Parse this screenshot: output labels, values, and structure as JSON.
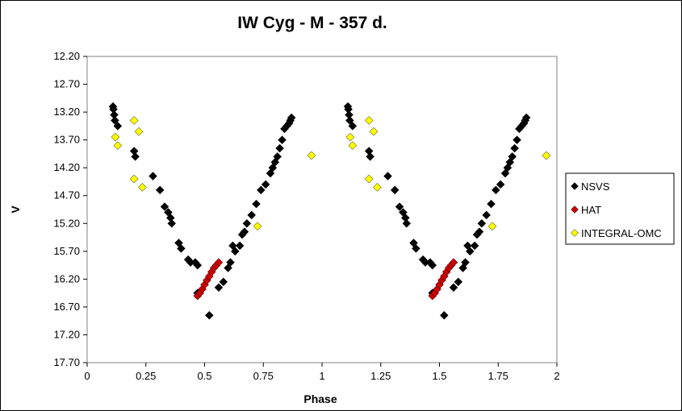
{
  "chart_data": {
    "type": "scatter",
    "title": "IW Cyg - M - 357 d.",
    "xlabel": "Phase",
    "ylabel": "V",
    "xlim": [
      0,
      2
    ],
    "ylim": [
      17.7,
      12.2
    ],
    "y_axis_inverted": true,
    "x_ticks": [
      "0",
      "0.25",
      "0.5",
      "0.75",
      "1",
      "1.25",
      "1.5",
      "1.75",
      "2"
    ],
    "y_ticks": [
      "12.20",
      "12.70",
      "13.20",
      "13.70",
      "14.20",
      "14.70",
      "15.20",
      "15.70",
      "16.20",
      "16.70",
      "17.20",
      "17.70"
    ],
    "grid": false,
    "legend_position": "right",
    "series": [
      {
        "name": "NSVS",
        "color": "#000000",
        "marker": "diamond",
        "points": [
          [
            0.11,
            13.1
          ],
          [
            0.112,
            13.15
          ],
          [
            0.115,
            13.25
          ],
          [
            0.118,
            13.35
          ],
          [
            0.13,
            13.45
          ],
          [
            0.2,
            13.9
          ],
          [
            0.205,
            14.0
          ],
          [
            0.28,
            14.35
          ],
          [
            0.31,
            14.6
          ],
          [
            0.33,
            14.9
          ],
          [
            0.345,
            15.0
          ],
          [
            0.355,
            15.1
          ],
          [
            0.36,
            15.2
          ],
          [
            0.39,
            15.55
          ],
          [
            0.4,
            15.65
          ],
          [
            0.43,
            15.85
          ],
          [
            0.44,
            15.9
          ],
          [
            0.46,
            15.9
          ],
          [
            0.47,
            15.95
          ],
          [
            0.47,
            16.45
          ],
          [
            0.52,
            16.85
          ],
          [
            0.56,
            16.35
          ],
          [
            0.58,
            16.25
          ],
          [
            0.6,
            16.0
          ],
          [
            0.61,
            15.9
          ],
          [
            0.62,
            15.6
          ],
          [
            0.63,
            15.7
          ],
          [
            0.65,
            15.6
          ],
          [
            0.66,
            15.4
          ],
          [
            0.67,
            15.35
          ],
          [
            0.68,
            15.2
          ],
          [
            0.7,
            15.05
          ],
          [
            0.72,
            14.85
          ],
          [
            0.74,
            14.6
          ],
          [
            0.76,
            14.5
          ],
          [
            0.78,
            14.3
          ],
          [
            0.79,
            14.2
          ],
          [
            0.8,
            14.1
          ],
          [
            0.81,
            14.0
          ],
          [
            0.82,
            13.85
          ],
          [
            0.83,
            13.7
          ],
          [
            0.84,
            13.5
          ],
          [
            0.85,
            13.45
          ],
          [
            0.86,
            13.4
          ],
          [
            0.865,
            13.35
          ],
          [
            0.87,
            13.3
          ],
          [
            1.11,
            13.1
          ],
          [
            1.112,
            13.15
          ],
          [
            1.115,
            13.25
          ],
          [
            1.118,
            13.35
          ],
          [
            1.13,
            13.45
          ],
          [
            1.2,
            13.9
          ],
          [
            1.205,
            14.0
          ],
          [
            1.28,
            14.35
          ],
          [
            1.31,
            14.6
          ],
          [
            1.33,
            14.9
          ],
          [
            1.345,
            15.0
          ],
          [
            1.355,
            15.1
          ],
          [
            1.36,
            15.2
          ],
          [
            1.39,
            15.55
          ],
          [
            1.4,
            15.65
          ],
          [
            1.43,
            15.85
          ],
          [
            1.44,
            15.9
          ],
          [
            1.46,
            15.9
          ],
          [
            1.47,
            15.95
          ],
          [
            1.47,
            16.45
          ],
          [
            1.52,
            16.85
          ],
          [
            1.56,
            16.35
          ],
          [
            1.58,
            16.25
          ],
          [
            1.6,
            16.0
          ],
          [
            1.61,
            15.9
          ],
          [
            1.62,
            15.6
          ],
          [
            1.63,
            15.7
          ],
          [
            1.65,
            15.6
          ],
          [
            1.66,
            15.4
          ],
          [
            1.67,
            15.35
          ],
          [
            1.68,
            15.2
          ],
          [
            1.7,
            15.05
          ],
          [
            1.72,
            14.85
          ],
          [
            1.74,
            14.6
          ],
          [
            1.76,
            14.5
          ],
          [
            1.78,
            14.3
          ],
          [
            1.79,
            14.2
          ],
          [
            1.8,
            14.1
          ],
          [
            1.81,
            14.0
          ],
          [
            1.82,
            13.85
          ],
          [
            1.83,
            13.7
          ],
          [
            1.84,
            13.5
          ],
          [
            1.85,
            13.45
          ],
          [
            1.86,
            13.4
          ],
          [
            1.865,
            13.35
          ],
          [
            1.87,
            13.3
          ]
        ]
      },
      {
        "name": "HAT",
        "color": "#cc0000",
        "marker": "diamond",
        "points": [
          [
            0.47,
            16.5
          ],
          [
            0.48,
            16.45
          ],
          [
            0.49,
            16.38
          ],
          [
            0.5,
            16.3
          ],
          [
            0.51,
            16.22
          ],
          [
            0.52,
            16.15
          ],
          [
            0.53,
            16.07
          ],
          [
            0.54,
            16.0
          ],
          [
            0.55,
            15.95
          ],
          [
            0.56,
            15.9
          ],
          [
            1.47,
            16.5
          ],
          [
            1.48,
            16.45
          ],
          [
            1.49,
            16.38
          ],
          [
            1.5,
            16.3
          ],
          [
            1.51,
            16.22
          ],
          [
            1.52,
            16.15
          ],
          [
            1.53,
            16.07
          ],
          [
            1.54,
            16.0
          ],
          [
            1.55,
            15.95
          ],
          [
            1.56,
            15.9
          ]
        ]
      },
      {
        "name": "INTEGRAL-OMC",
        "color": "#ffff00",
        "marker": "diamond",
        "points": [
          [
            0.12,
            13.65
          ],
          [
            0.13,
            13.8
          ],
          [
            0.2,
            13.35
          ],
          [
            0.22,
            13.55
          ],
          [
            0.2,
            14.4
          ],
          [
            0.235,
            14.55
          ],
          [
            0.725,
            15.25
          ],
          [
            0.955,
            13.98
          ],
          [
            1.12,
            13.65
          ],
          [
            1.13,
            13.8
          ],
          [
            1.2,
            13.35
          ],
          [
            1.22,
            13.55
          ],
          [
            1.2,
            14.4
          ],
          [
            1.235,
            14.55
          ],
          [
            1.725,
            15.25
          ],
          [
            1.955,
            13.98
          ]
        ]
      }
    ]
  }
}
